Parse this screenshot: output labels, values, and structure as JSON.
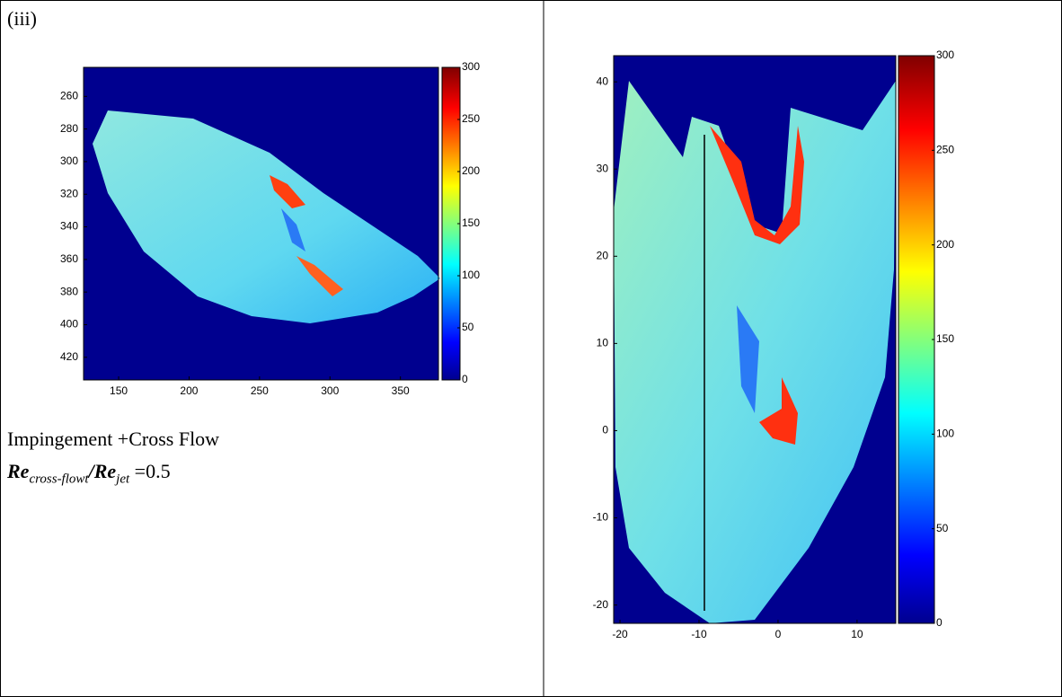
{
  "label": "(iii)",
  "caption": {
    "line1": "Impingement +Cross Flow",
    "re1": "Re",
    "sub1": "cross-flowt",
    "slash": "/",
    "re2": "Re",
    "sub2": "jet",
    "eq": " =0.5"
  },
  "left_plot": {
    "xticks": [
      150,
      200,
      250,
      300,
      350
    ],
    "yticks": [
      260,
      280,
      300,
      320,
      340,
      360,
      380,
      400,
      420
    ],
    "colorbar_ticks": [
      0,
      50,
      100,
      150,
      200,
      250,
      300
    ]
  },
  "right_plot": {
    "xticks": [
      -20,
      -10,
      0,
      10
    ],
    "yticks": [
      -20,
      -10,
      0,
      10,
      20,
      30,
      40
    ],
    "colorbar_ticks": [
      0,
      50,
      100,
      150,
      200,
      250,
      300
    ]
  }
}
